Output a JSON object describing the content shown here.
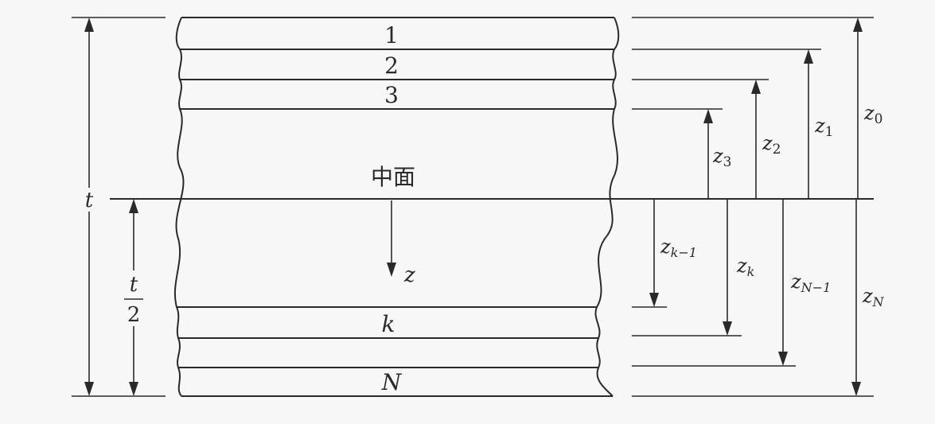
{
  "plies": {
    "layer_1": "1",
    "layer_2": "2",
    "layer_3": "3",
    "layer_k": "k",
    "layer_N": "N"
  },
  "midplane_label": "中面",
  "thickness": {
    "total": "t",
    "half_numerator": "t",
    "half_denominator": "2"
  },
  "z_axis_label": "z",
  "z_coords": {
    "z0": {
      "base": "z",
      "sub": "0"
    },
    "z1": {
      "base": "z",
      "sub": "1"
    },
    "z2": {
      "base": "z",
      "sub": "2"
    },
    "z3": {
      "base": "z",
      "sub": "3"
    },
    "zk_minus_1": {
      "base": "z",
      "sub": "k−1"
    },
    "zk": {
      "base": "z",
      "sub": "k"
    },
    "zN_minus_1": {
      "base": "z",
      "sub": "N−1"
    },
    "zN": {
      "base": "z",
      "sub": "N"
    }
  }
}
